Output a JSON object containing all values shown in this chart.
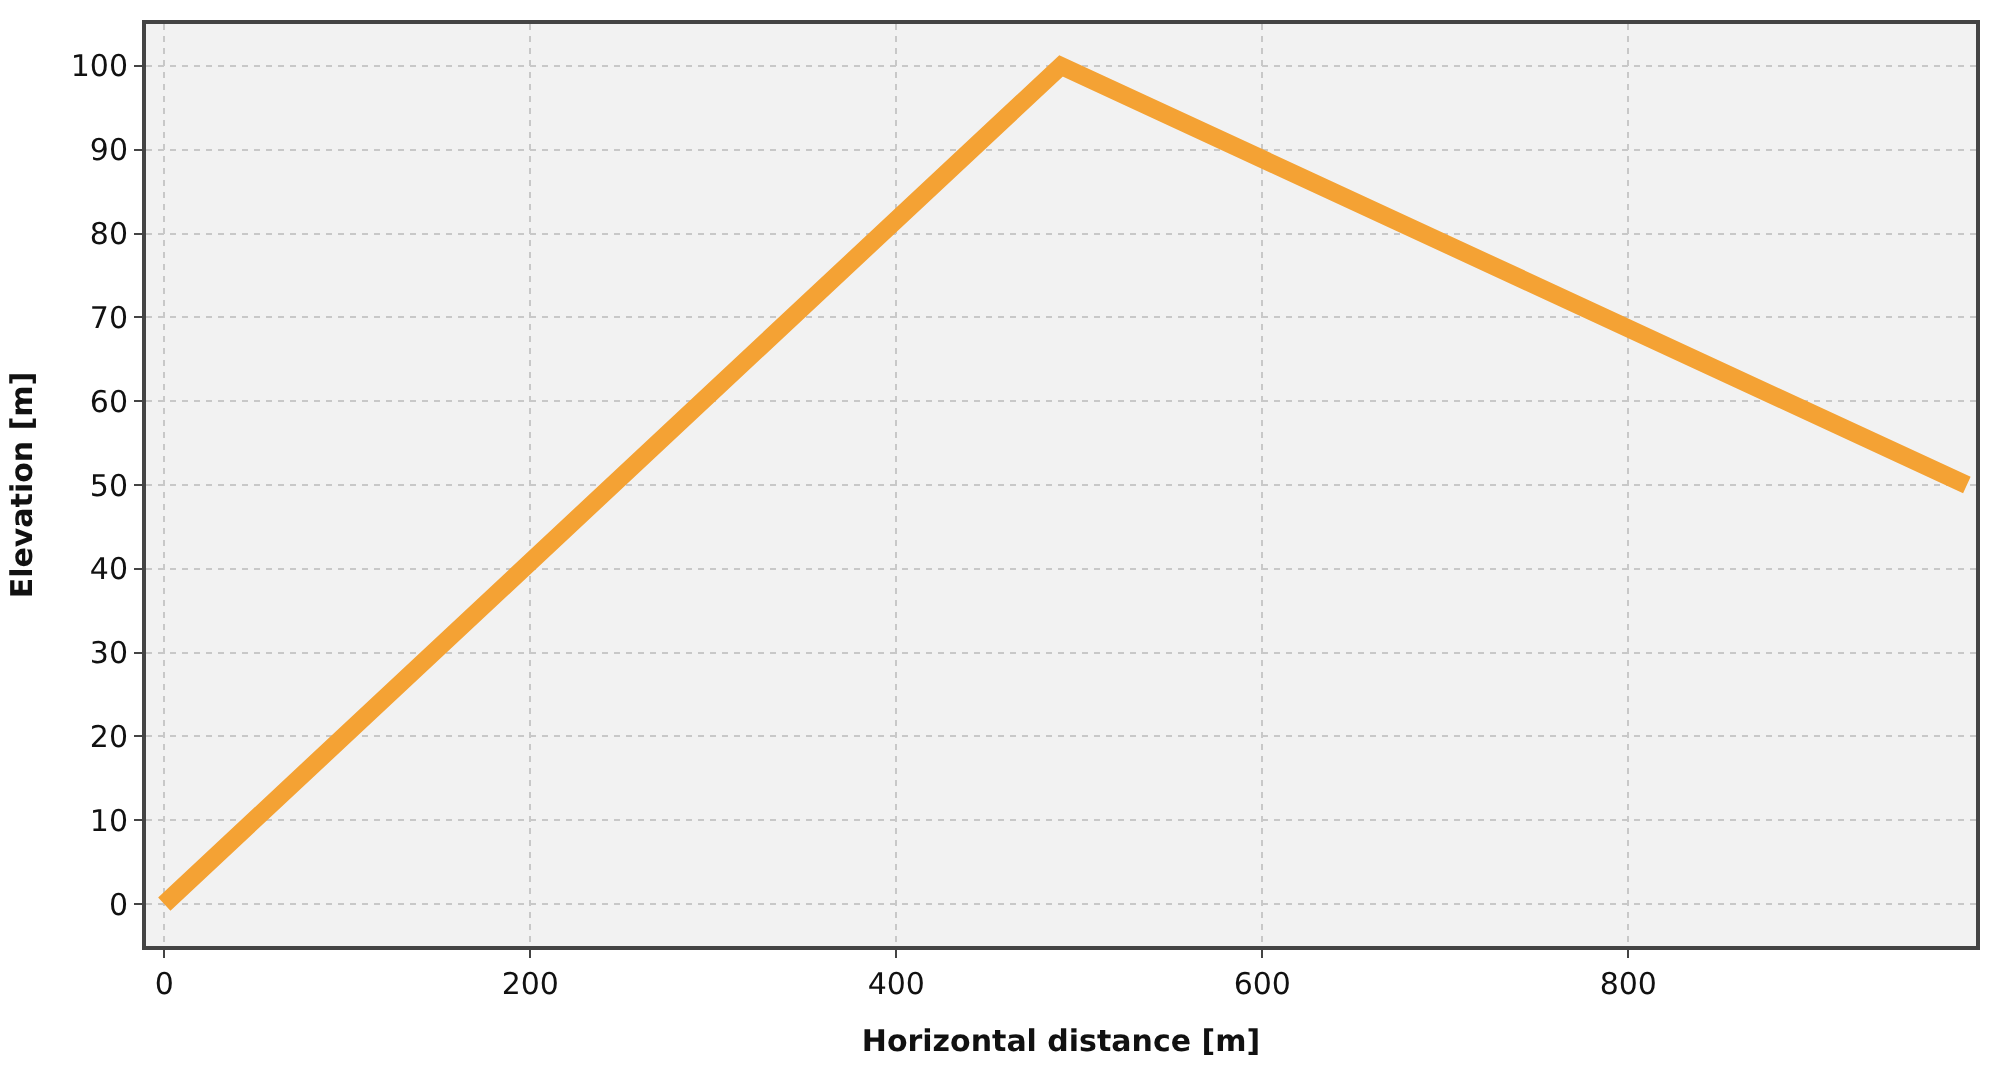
{
  "chart_data": {
    "type": "line",
    "xlabel": "Horizontal distance [m]",
    "ylabel": "Elevation [m]",
    "x": [
      0,
      490,
      985
    ],
    "series": [
      {
        "color": "#f4a234",
        "values": [
          0,
          100,
          50
        ]
      }
    ],
    "xlim": [
      -10,
      990
    ],
    "xticks": [
      0,
      200,
      400,
      600,
      800
    ],
    "ylim": [
      -5,
      105
    ],
    "yticks": [
      0,
      10,
      20,
      30,
      40,
      50,
      60,
      70,
      80,
      90,
      100
    ],
    "grid": true,
    "marker": "none",
    "line_style": "solid"
  }
}
